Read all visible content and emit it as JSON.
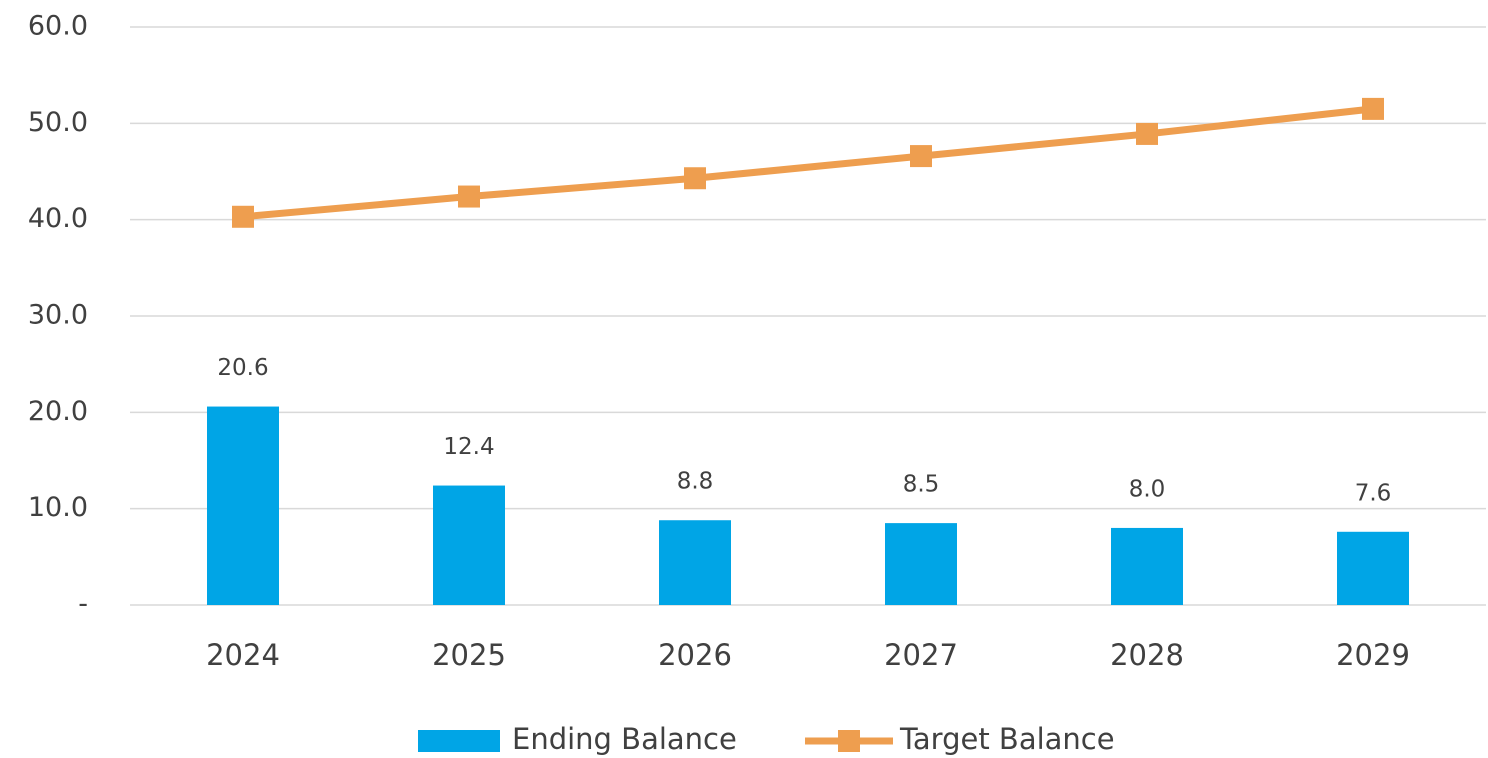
{
  "chart_data": {
    "type": "combo",
    "categories": [
      "2024",
      "2025",
      "2026",
      "2027",
      "2028",
      "2029"
    ],
    "series": [
      {
        "name": "Ending Balance",
        "type": "bar",
        "color": "#00a5e6",
        "values": [
          20.6,
          12.4,
          8.8,
          8.5,
          8.0,
          7.6
        ],
        "value_labels": [
          "20.6",
          "12.4",
          "8.8",
          "8.5",
          "8.0",
          "7.6"
        ]
      },
      {
        "name": "Target Balance",
        "type": "line",
        "color": "#ee9e4f",
        "values": [
          40.3,
          42.4,
          44.3,
          46.6,
          48.9,
          51.5
        ]
      }
    ],
    "ylim": [
      0,
      60
    ],
    "yticks": [
      {
        "value": 0,
        "label": "-"
      },
      {
        "value": 10,
        "label": "10.0"
      },
      {
        "value": 20,
        "label": "20.0"
      },
      {
        "value": 30,
        "label": "30.0"
      },
      {
        "value": 40,
        "label": "40.0"
      },
      {
        "value": 50,
        "label": "50.0"
      },
      {
        "value": 60,
        "label": "60.0"
      }
    ],
    "grid": true,
    "legend": "bottom"
  }
}
